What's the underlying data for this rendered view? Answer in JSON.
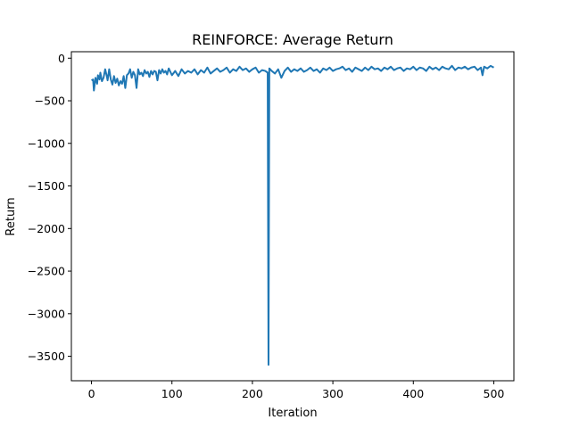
{
  "chart_data": {
    "type": "line",
    "title": "REINFORCE: Average Return",
    "xlabel": "Iteration",
    "ylabel": "Return",
    "xlim": [
      -25,
      525
    ],
    "ylim": [
      -3787,
      76
    ],
    "xticks": [
      0,
      100,
      200,
      300,
      400,
      500
    ],
    "yticks": [
      0,
      -500,
      -1000,
      -1500,
      -2000,
      -2500,
      -3000,
      -3500
    ],
    "xtick_labels": [
      "0",
      "100",
      "200",
      "300",
      "400",
      "500"
    ],
    "ytick_labels": [
      "0",
      "−500",
      "−1000",
      "−1500",
      "−2000",
      "−2500",
      "−3000",
      "−3500"
    ],
    "grid": false,
    "series": [
      {
        "color": "#1f77b4",
        "points": [
          [
            0,
            -260
          ],
          [
            2,
            -250
          ],
          [
            3,
            -380
          ],
          [
            5,
            -230
          ],
          [
            7,
            -300
          ],
          [
            8,
            -200
          ],
          [
            10,
            -250
          ],
          [
            11,
            -170
          ],
          [
            13,
            -270
          ],
          [
            15,
            -230
          ],
          [
            17,
            -130
          ],
          [
            19,
            -210
          ],
          [
            20,
            -260
          ],
          [
            22,
            -130
          ],
          [
            24,
            -250
          ],
          [
            26,
            -310
          ],
          [
            28,
            -210
          ],
          [
            30,
            -290
          ],
          [
            32,
            -240
          ],
          [
            34,
            -320
          ],
          [
            36,
            -270
          ],
          [
            38,
            -300
          ],
          [
            40,
            -210
          ],
          [
            42,
            -350
          ],
          [
            44,
            -200
          ],
          [
            46,
            -180
          ],
          [
            48,
            -130
          ],
          [
            50,
            -230
          ],
          [
            52,
            -160
          ],
          [
            54,
            -200
          ],
          [
            56,
            -350
          ],
          [
            58,
            -130
          ],
          [
            60,
            -190
          ],
          [
            62,
            -170
          ],
          [
            64,
            -210
          ],
          [
            66,
            -140
          ],
          [
            68,
            -180
          ],
          [
            70,
            -160
          ],
          [
            72,
            -220
          ],
          [
            74,
            -150
          ],
          [
            76,
            -190
          ],
          [
            78,
            -150
          ],
          [
            80,
            -160
          ],
          [
            82,
            -260
          ],
          [
            84,
            -140
          ],
          [
            86,
            -180
          ],
          [
            88,
            -130
          ],
          [
            90,
            -170
          ],
          [
            92,
            -150
          ],
          [
            94,
            -190
          ],
          [
            96,
            -120
          ],
          [
            98,
            -160
          ],
          [
            100,
            -200
          ],
          [
            104,
            -150
          ],
          [
            108,
            -210
          ],
          [
            112,
            -130
          ],
          [
            116,
            -180
          ],
          [
            120,
            -150
          ],
          [
            124,
            -170
          ],
          [
            128,
            -130
          ],
          [
            132,
            -190
          ],
          [
            136,
            -140
          ],
          [
            140,
            -170
          ],
          [
            144,
            -110
          ],
          [
            148,
            -180
          ],
          [
            152,
            -150
          ],
          [
            156,
            -120
          ],
          [
            160,
            -160
          ],
          [
            164,
            -140
          ],
          [
            168,
            -110
          ],
          [
            172,
            -170
          ],
          [
            176,
            -130
          ],
          [
            180,
            -150
          ],
          [
            184,
            -100
          ],
          [
            188,
            -140
          ],
          [
            192,
            -120
          ],
          [
            196,
            -160
          ],
          [
            200,
            -130
          ],
          [
            204,
            -110
          ],
          [
            208,
            -170
          ],
          [
            212,
            -140
          ],
          [
            216,
            -150
          ],
          [
            219,
            -170
          ],
          [
            220,
            -3600
          ],
          [
            221,
            -120
          ],
          [
            224,
            -150
          ],
          [
            228,
            -180
          ],
          [
            232,
            -130
          ],
          [
            236,
            -230
          ],
          [
            240,
            -150
          ],
          [
            244,
            -110
          ],
          [
            248,
            -160
          ],
          [
            252,
            -130
          ],
          [
            256,
            -150
          ],
          [
            260,
            -120
          ],
          [
            264,
            -160
          ],
          [
            268,
            -140
          ],
          [
            272,
            -110
          ],
          [
            276,
            -150
          ],
          [
            280,
            -130
          ],
          [
            284,
            -170
          ],
          [
            288,
            -120
          ],
          [
            292,
            -140
          ],
          [
            296,
            -110
          ],
          [
            300,
            -150
          ],
          [
            304,
            -130
          ],
          [
            308,
            -120
          ],
          [
            312,
            -100
          ],
          [
            316,
            -140
          ],
          [
            320,
            -120
          ],
          [
            324,
            -160
          ],
          [
            328,
            -110
          ],
          [
            332,
            -130
          ],
          [
            336,
            -150
          ],
          [
            340,
            -110
          ],
          [
            344,
            -140
          ],
          [
            348,
            -100
          ],
          [
            352,
            -130
          ],
          [
            356,
            -120
          ],
          [
            360,
            -150
          ],
          [
            364,
            -110
          ],
          [
            368,
            -130
          ],
          [
            372,
            -100
          ],
          [
            376,
            -140
          ],
          [
            380,
            -120
          ],
          [
            384,
            -110
          ],
          [
            388,
            -150
          ],
          [
            392,
            -120
          ],
          [
            396,
            -130
          ],
          [
            400,
            -100
          ],
          [
            404,
            -140
          ],
          [
            408,
            -110
          ],
          [
            412,
            -120
          ],
          [
            416,
            -150
          ],
          [
            420,
            -100
          ],
          [
            424,
            -130
          ],
          [
            428,
            -110
          ],
          [
            432,
            -140
          ],
          [
            436,
            -100
          ],
          [
            440,
            -120
          ],
          [
            444,
            -130
          ],
          [
            448,
            -90
          ],
          [
            452,
            -140
          ],
          [
            456,
            -110
          ],
          [
            460,
            -120
          ],
          [
            464,
            -100
          ],
          [
            468,
            -130
          ],
          [
            472,
            -110
          ],
          [
            476,
            -100
          ],
          [
            480,
            -140
          ],
          [
            484,
            -110
          ],
          [
            486,
            -200
          ],
          [
            488,
            -100
          ],
          [
            492,
            -120
          ],
          [
            496,
            -90
          ],
          [
            500,
            -110
          ]
        ]
      }
    ]
  }
}
